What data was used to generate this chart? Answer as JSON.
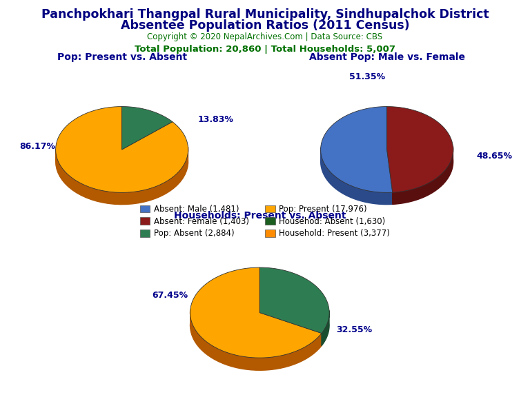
{
  "title_line1": "Panchpokhari Thangpal Rural Municipality, Sindhupalchok District",
  "title_line2": "Absentee Population Ratios (2011 Census)",
  "title_color": "#000080",
  "copyright_text": "Copyright © 2020 NepalArchives.Com | Data Source: CBS",
  "copyright_color": "#007000",
  "stats_text": "Total Population: 20,860 | Total Households: 5,007",
  "stats_color": "#007000",
  "pie1_title": "Pop: Present vs. Absent",
  "pie1_values": [
    86.17,
    13.83
  ],
  "pie1_colors": [
    "#FFA500",
    "#2E7D52"
  ],
  "pie1_shadow_colors": [
    "#b35900",
    "#1a4d30"
  ],
  "pie2_title": "Absent Pop: Male vs. Female",
  "pie2_values": [
    51.35,
    48.65
  ],
  "pie2_colors": [
    "#4472C4",
    "#8B1A1A"
  ],
  "pie2_shadow_colors": [
    "#2a4a8a",
    "#5a0f0f"
  ],
  "pie3_title": "Households: Present vs. Absent",
  "pie3_values": [
    67.45,
    32.55
  ],
  "pie3_colors": [
    "#FFA500",
    "#2E7D52"
  ],
  "pie3_shadow_colors": [
    "#b35900",
    "#1a4d30"
  ],
  "legend_entries": [
    {
      "label": "Absent: Male (1,481)",
      "color": "#4472C4"
    },
    {
      "label": "Absent: Female (1,403)",
      "color": "#8B1A1A"
    },
    {
      "label": "Pop: Absent (2,884)",
      "color": "#2E7D52"
    },
    {
      "label": "Pop: Present (17,976)",
      "color": "#FFA500"
    },
    {
      "label": "Househod: Absent (1,630)",
      "color": "#1B5E20"
    },
    {
      "label": "Household: Present (3,377)",
      "color": "#FF8C00"
    }
  ],
  "label_color": "#00008B",
  "bg_color": "#FFFFFF"
}
